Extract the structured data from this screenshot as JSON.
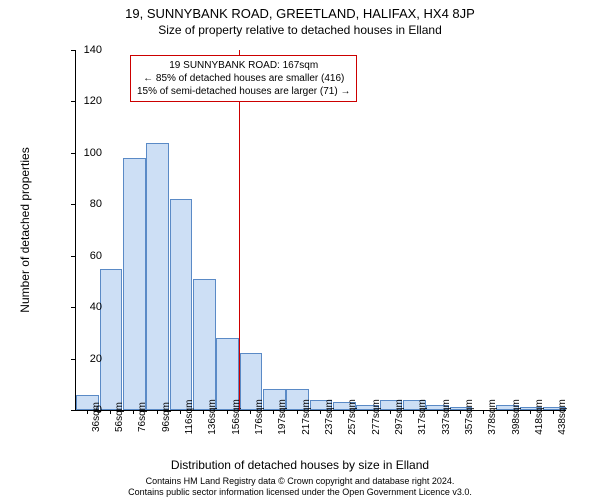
{
  "title": "19, SUNNYBANK ROAD, GREETLAND, HALIFAX, HX4 8JP",
  "subtitle": "Size of property relative to detached houses in Elland",
  "ylabel": "Number of detached properties",
  "xlabel": "Distribution of detached houses by size in Elland",
  "footer_line1": "Contains HM Land Registry data © Crown copyright and database right 2024.",
  "footer_line2": "Contains public sector information licensed under the Open Government Licence v3.0.",
  "annotation": {
    "line1": "19 SUNNYBANK ROAD: 167sqm",
    "line2": "← 85% of detached houses are smaller (416)",
    "line3": "15% of semi-detached houses are larger (71) →"
  },
  "chart": {
    "type": "histogram",
    "ylim": [
      0,
      140
    ],
    "ytick_step": 20,
    "bar_fill": "#cddff5",
    "bar_border": "#5a8ac6",
    "marker_color": "#cc0000",
    "marker_x_value": 167,
    "background_color": "#ffffff",
    "xtick_labels": [
      "36sqm",
      "56sqm",
      "76sqm",
      "96sqm",
      "116sqm",
      "136sqm",
      "156sqm",
      "176sqm",
      "197sqm",
      "217sqm",
      "237sqm",
      "257sqm",
      "277sqm",
      "297sqm",
      "317sqm",
      "337sqm",
      "357sqm",
      "378sqm",
      "398sqm",
      "418sqm",
      "438sqm"
    ],
    "bars": [
      {
        "label": "36sqm",
        "value": 6
      },
      {
        "label": "56sqm",
        "value": 55
      },
      {
        "label": "76sqm",
        "value": 98
      },
      {
        "label": "96sqm",
        "value": 104
      },
      {
        "label": "116sqm",
        "value": 82
      },
      {
        "label": "136sqm",
        "value": 51
      },
      {
        "label": "156sqm",
        "value": 28
      },
      {
        "label": "176sqm",
        "value": 22
      },
      {
        "label": "197sqm",
        "value": 8
      },
      {
        "label": "217sqm",
        "value": 8
      },
      {
        "label": "237sqm",
        "value": 4
      },
      {
        "label": "257sqm",
        "value": 3
      },
      {
        "label": "277sqm",
        "value": 2
      },
      {
        "label": "297sqm",
        "value": 4
      },
      {
        "label": "317sqm",
        "value": 4
      },
      {
        "label": "337sqm",
        "value": 2
      },
      {
        "label": "357sqm",
        "value": 1
      },
      {
        "label": "378sqm",
        "value": 0
      },
      {
        "label": "398sqm",
        "value": 2
      },
      {
        "label": "418sqm",
        "value": 1
      },
      {
        "label": "438sqm",
        "value": 1
      }
    ]
  }
}
